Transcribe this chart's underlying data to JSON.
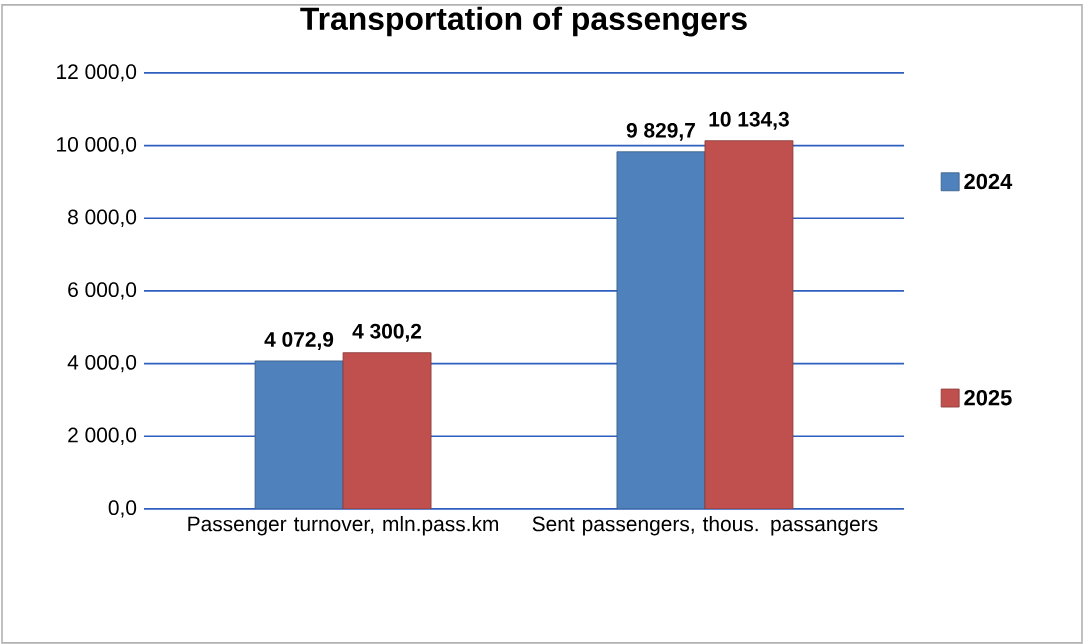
{
  "chart_data": {
    "type": "bar",
    "title": "Transportation of passengers",
    "categories": [
      "Passenger turnover, mln.pass.km",
      "Sent passengers, thous. passangers"
    ],
    "series": [
      {
        "name": "2024",
        "color": "#4f81bd",
        "values": [
          4072.9,
          9829.7
        ],
        "value_labels": [
          "4 072,9",
          "9 829,7"
        ]
      },
      {
        "name": "2025",
        "color": "#c0504d",
        "values": [
          4300.2,
          10134.3
        ],
        "value_labels": [
          "4 300,2",
          "10 134,3"
        ]
      }
    ],
    "ylim": [
      0,
      12000
    ],
    "yticks": [
      {
        "value": 0,
        "label": "0,0"
      },
      {
        "value": 2000,
        "label": "2 000,0"
      },
      {
        "value": 4000,
        "label": "4 000,0"
      },
      {
        "value": 6000,
        "label": "6 000,0"
      },
      {
        "value": 8000,
        "label": "8 000,0"
      },
      {
        "value": 10000,
        "label": "10 000,0"
      },
      {
        "value": 12000,
        "label": "12 000,0"
      }
    ],
    "grid": "y",
    "legend": "right"
  }
}
